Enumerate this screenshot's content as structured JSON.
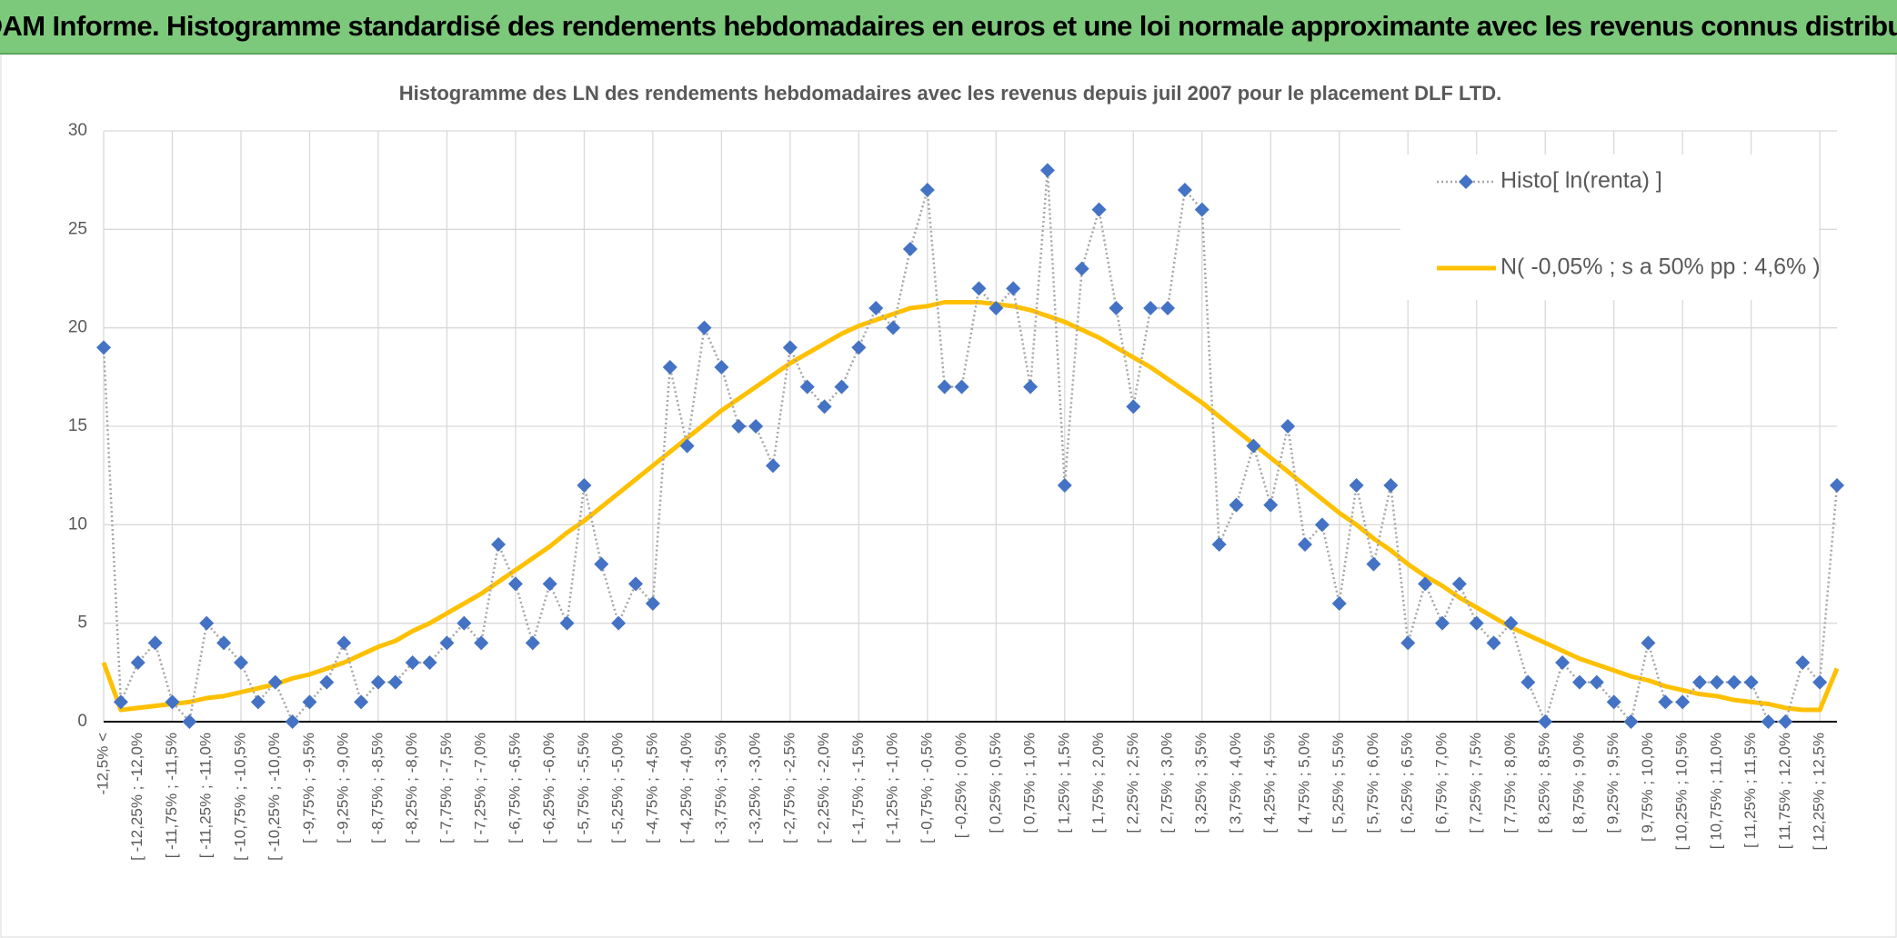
{
  "header": {
    "title": "ADAM Informe. Histogramme standardisé des rendements hebdomadaires en euros et une loi normale approximante avec les revenus connus distribués"
  },
  "chart_data": {
    "type": "line",
    "title": "Histogramme des LN des rendements hebdomadaires avec les revenus depuis juil 2007 pour le placement DLF LTD.",
    "categories": [
      "-12,5% <",
      null,
      "[ -12,25% ; -12,0%",
      null,
      "[ -11,75% ; -11,5%",
      null,
      "[ -11,25% ; -11,0%",
      null,
      "[ -10,75% ; -10,5%",
      null,
      "[ -10,25% ; -10,0%",
      null,
      "[ -9,75% ; -9,5%",
      null,
      "[ -9,25% ; -9,0%",
      null,
      "[ -8,75% ; -8,5%",
      null,
      "[ -8,25% ; -8,0%",
      null,
      "[ -7,75% ; -7,5%",
      null,
      "[ -7,25% ; -7,0%",
      null,
      "[ -6,75% ; -6,5%",
      null,
      "[ -6,25% ; -6,0%",
      null,
      "[ -5,75% ; -5,5%",
      null,
      "[ -5,25% ; -5,0%",
      null,
      "[ -4,75% ; -4,5%",
      null,
      "[ -4,25% ; -4,0%",
      null,
      "[ -3,75% ; -3,5%",
      null,
      "[ -3,25% ; -3,0%",
      null,
      "[ -2,75% ; -2,5%",
      null,
      "[ -2,25% ; -2,0%",
      null,
      "[ -1,75% ; -1,5%",
      null,
      "[ -1,25% ; -1,0%",
      null,
      "[ -0,75% ; -0,5%",
      null,
      "[ -0,25% ; 0,0%",
      null,
      "[ 0,25% ; 0,5%",
      null,
      "[ 0,75% ; 1,0%",
      null,
      "[ 1,25% ; 1,5%",
      null,
      "[ 1,75% ; 2,0%",
      null,
      "[ 2,25% ; 2,5%",
      null,
      "[ 2,75% ; 3,0%",
      null,
      "[ 3,25% ; 3,5%",
      null,
      "[ 3,75% ; 4,0%",
      null,
      "[ 4,25% ; 4,5%",
      null,
      "[ 4,75% ; 5,0%",
      null,
      "[ 5,25% ; 5,5%",
      null,
      "[ 5,75% ; 6,0%",
      null,
      "[ 6,25% ; 6,5%",
      null,
      "[ 6,75% ; 7,0%",
      null,
      "[ 7,25% ; 7,5%",
      null,
      "[ 7,75% ; 8,0%",
      null,
      "[ 8,25% ; 8,5%",
      null,
      "[ 8,75% ; 9,0%",
      null,
      "[ 9,25% ; 9,5%",
      null,
      "[ 9,75% ; 10,0%",
      null,
      "[ 10,25% ; 10,5%",
      null,
      "[ 10,75% ; 11,0%",
      null,
      "[ 11,25% ; 11,5%",
      null,
      "[ 11,75% ; 12,0%",
      null,
      "[ 12,25% ; 12,5%",
      null
    ],
    "series": [
      {
        "name": "Histo[ ln(renta) ]",
        "color": "#4472c4",
        "line_color": "#a6a6a6",
        "marker": "diamond",
        "values": [
          19,
          1,
          3,
          4,
          1,
          0,
          5,
          4,
          3,
          1,
          2,
          0,
          1,
          2,
          4,
          1,
          2,
          2,
          3,
          3,
          4,
          5,
          4,
          9,
          7,
          4,
          7,
          5,
          12,
          8,
          5,
          7,
          6,
          18,
          14,
          20,
          18,
          15,
          15,
          13,
          19,
          17,
          16,
          17,
          19,
          21,
          20,
          24,
          27,
          17,
          17,
          22,
          21,
          22,
          17,
          28,
          12,
          23,
          26,
          21,
          16,
          21,
          21,
          27,
          26,
          9,
          11,
          14,
          11,
          15,
          9,
          10,
          6,
          12,
          8,
          12,
          4,
          7,
          5,
          7,
          5,
          4,
          5,
          2,
          0,
          3,
          2,
          2,
          1,
          0,
          4,
          1,
          1,
          2,
          2,
          2,
          2,
          0,
          0,
          3,
          2,
          12
        ]
      },
      {
        "name": "N( -0,05% ; s a 50% pp : 4,6% )",
        "color": "#ffc000",
        "values": [
          3,
          0.6,
          0.7,
          0.8,
          0.9,
          1.0,
          1.2,
          1.3,
          1.5,
          1.7,
          1.9,
          2.2,
          2.4,
          2.7,
          3.0,
          3.4,
          3.8,
          4.1,
          4.6,
          5.0,
          5.5,
          6.0,
          6.5,
          7.1,
          7.7,
          8.3,
          8.9,
          9.6,
          10.2,
          10.9,
          11.6,
          12.3,
          13.0,
          13.7,
          14.4,
          15.1,
          15.8,
          16.4,
          17.0,
          17.6,
          18.2,
          18.7,
          19.2,
          19.7,
          20.1,
          20.4,
          20.7,
          21.0,
          21.1,
          21.3,
          21.3,
          21.3,
          21.2,
          21.1,
          20.9,
          20.6,
          20.3,
          19.9,
          19.5,
          19.0,
          18.5,
          18.0,
          17.4,
          16.8,
          16.2,
          15.5,
          14.8,
          14.1,
          13.4,
          12.7,
          12.0,
          11.3,
          10.6,
          10.0,
          9.3,
          8.7,
          8.0,
          7.4,
          6.9,
          6.3,
          5.8,
          5.3,
          4.8,
          4.4,
          4.0,
          3.6,
          3.2,
          2.9,
          2.6,
          2.3,
          2.1,
          1.8,
          1.6,
          1.4,
          1.3,
          1.1,
          1.0,
          0.9,
          0.7,
          0.6,
          0.6,
          2.7
        ]
      }
    ],
    "ylim": [
      0,
      30
    ],
    "yticks": [
      0,
      5,
      10,
      15,
      20,
      25,
      30
    ],
    "grid": true,
    "legend": "top-right"
  }
}
